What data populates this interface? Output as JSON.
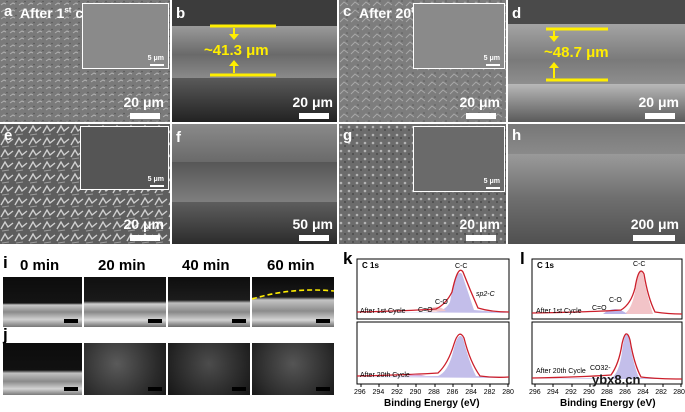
{
  "sem_row1": {
    "a": {
      "letter": "a",
      "title_pre": "After 1",
      "title_sup": "st",
      "title_post": " cycle",
      "scale": "20 μm",
      "inset_scale": "5 μm"
    },
    "b": {
      "letter": "b",
      "thickness": "~41.3 μm",
      "scale": "20 μm"
    },
    "c": {
      "letter": "c",
      "title_pre": "After 20",
      "title_sup": "th",
      "title_post": " cycle",
      "scale": "20 μm",
      "inset_scale": "5 μm"
    },
    "d": {
      "letter": "d",
      "thickness": "~48.7 μm",
      "scale": "20 μm"
    }
  },
  "sem_row2": {
    "e": {
      "letter": "e",
      "scale": "20 μm",
      "inset_scale": "5 μm"
    },
    "f": {
      "letter": "f",
      "scale": "50 μm"
    },
    "g": {
      "letter": "g",
      "scale": "20 μm",
      "inset_scale": "5 μm"
    },
    "h": {
      "letter": "h",
      "scale": "200 μm"
    }
  },
  "optical": {
    "letter_i": "i",
    "letter_j": "j",
    "times": [
      "0 min",
      "20 min",
      "40 min",
      "60 min"
    ]
  },
  "xps": {
    "k": {
      "letter": "k",
      "element": "C 1s",
      "top_label": "After 1st Cycle",
      "bottom_label": "After 20th Cycle",
      "peaks_top": [
        "C-C",
        "C-O",
        "C=O",
        "sp2-C"
      ],
      "xlabel": "Binding Energy (eV)",
      "ticks": [
        "296",
        "294",
        "292",
        "290",
        "288",
        "286",
        "284",
        "282",
        "280"
      ]
    },
    "l": {
      "letter": "l",
      "element": "C 1s",
      "top_label": "After 1st Cycle",
      "bottom_label": "After 20th Cycle",
      "peaks_top": [
        "C-C",
        "C-O",
        "C=O"
      ],
      "peak_bottom": "CO32-",
      "xlabel": "Binding Energy (eV)",
      "ticks": [
        "296",
        "294",
        "292",
        "290",
        "288",
        "286",
        "284",
        "282",
        "280"
      ]
    }
  },
  "colors": {
    "yellow": "#ffee00",
    "fit_red": "#cc1f2b",
    "fill_blue": "#b9b3e6",
    "fill_pink": "#f2c4c8"
  },
  "watermark": "ybx8.cn"
}
